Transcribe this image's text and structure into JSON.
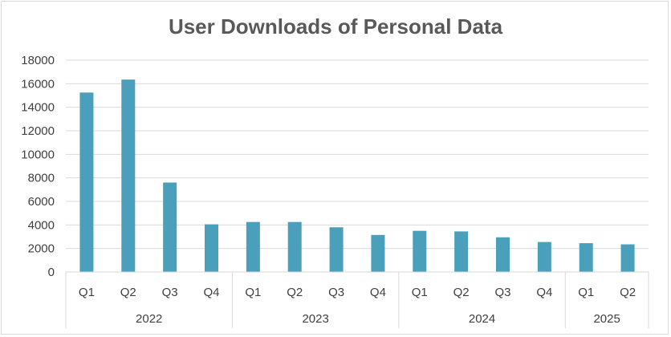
{
  "chart_data": {
    "type": "bar",
    "title": "User Downloads of Personal Data",
    "xlabel": "",
    "ylabel": "",
    "ylim": [
      0,
      18000
    ],
    "yticks": [
      0,
      2000,
      4000,
      6000,
      8000,
      10000,
      12000,
      14000,
      16000,
      18000
    ],
    "grid": true,
    "legend": "none",
    "bar_color": "#4aa0ba",
    "groups": [
      {
        "label": "2022",
        "categories": [
          "Q1",
          "Q2",
          "Q3",
          "Q4"
        ]
      },
      {
        "label": "2023",
        "categories": [
          "Q1",
          "Q2",
          "Q3",
          "Q4"
        ]
      },
      {
        "label": "2024",
        "categories": [
          "Q1",
          "Q2",
          "Q3",
          "Q4"
        ]
      },
      {
        "label": "2025",
        "categories": [
          "Q1",
          "Q2"
        ]
      }
    ],
    "categories": [
      "Q1",
      "Q2",
      "Q3",
      "Q4",
      "Q1",
      "Q2",
      "Q3",
      "Q4",
      "Q1",
      "Q2",
      "Q3",
      "Q4",
      "Q1",
      "Q2"
    ],
    "values": [
      15250,
      16350,
      7600,
      4050,
      4250,
      4250,
      3800,
      3150,
      3500,
      3450,
      2950,
      2550,
      2450,
      2350
    ]
  }
}
